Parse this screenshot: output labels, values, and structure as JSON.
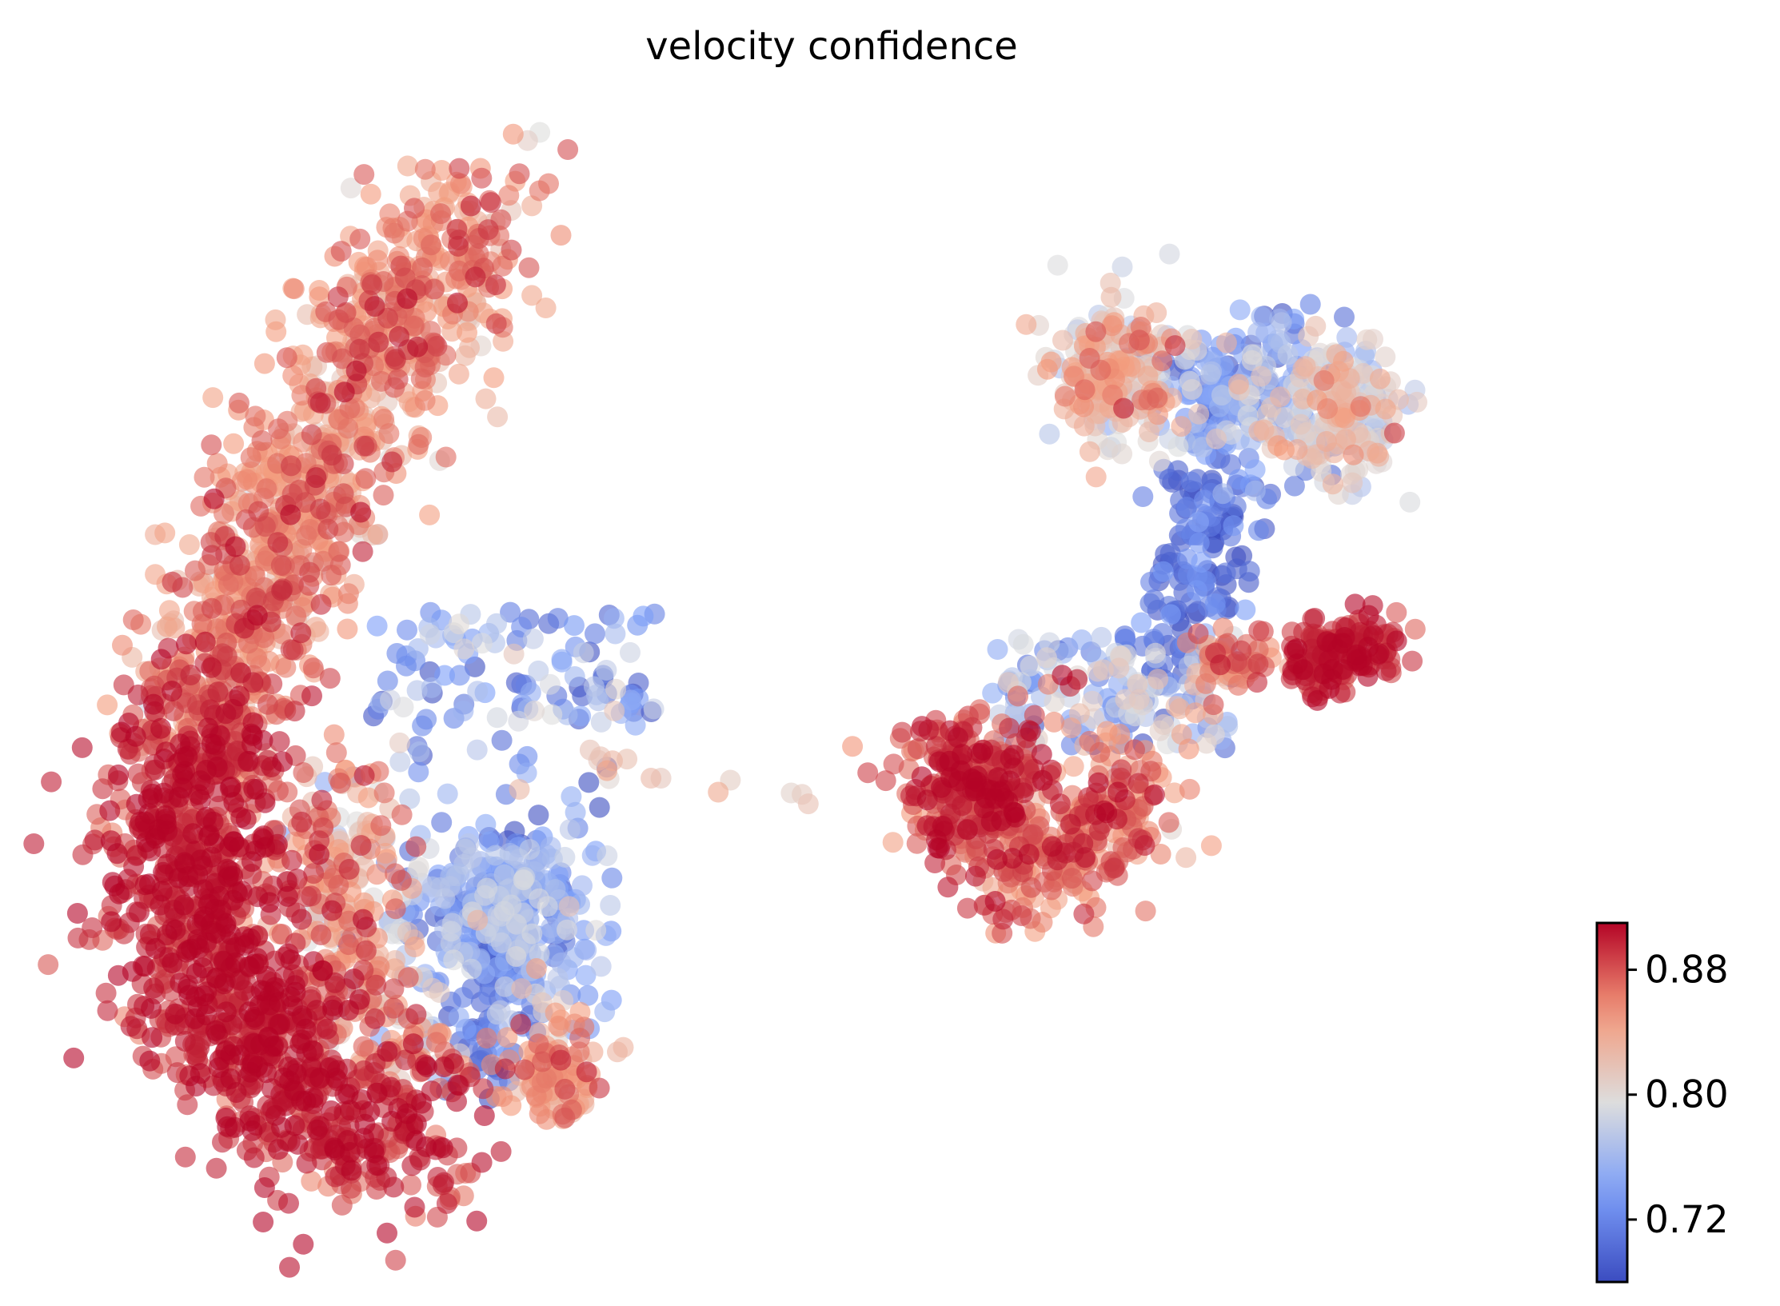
{
  "chart_data": {
    "type": "scatter",
    "title": "velocity confidence",
    "xlabel": "",
    "ylabel": "",
    "axes_visible": false,
    "grid": false,
    "colorbar": {
      "colormap": "coolwarm",
      "min": 0.68,
      "max": 0.91,
      "ticks": [
        0.72,
        0.8,
        0.88
      ],
      "tick_labels": [
        "0.72",
        "0.80",
        "0.88"
      ],
      "placement": "lower-right"
    },
    "marker_alpha": 0.6,
    "xlim": [
      0,
      1
    ],
    "ylim": [
      0,
      1
    ],
    "regions": [
      {
        "name": "left arc upper band",
        "path": [
          [
            0.26,
            0.92
          ],
          [
            0.22,
            0.84
          ],
          [
            0.18,
            0.76
          ],
          [
            0.15,
            0.68
          ],
          [
            0.12,
            0.6
          ],
          [
            0.1,
            0.53
          ],
          [
            0.085,
            0.47
          ]
        ],
        "spread": 0.028,
        "count": 950,
        "value_mean": 0.852,
        "value_sd": 0.025
      },
      {
        "name": "left arc lower band",
        "path": [
          [
            0.085,
            0.47
          ],
          [
            0.07,
            0.37
          ],
          [
            0.08,
            0.27
          ],
          [
            0.12,
            0.18
          ],
          [
            0.18,
            0.12
          ],
          [
            0.23,
            0.11
          ]
        ],
        "spread": 0.032,
        "count": 1100,
        "value_mean": 0.895,
        "value_sd": 0.018
      },
      {
        "name": "left arc inner edge",
        "path": [
          [
            0.17,
            0.42
          ],
          [
            0.17,
            0.32
          ],
          [
            0.19,
            0.22
          ],
          [
            0.24,
            0.16
          ]
        ],
        "spread": 0.02,
        "count": 250,
        "value_mean": 0.845,
        "value_sd": 0.03
      },
      {
        "name": "central blue blob",
        "center": [
          0.28,
          0.305
        ],
        "sd": [
          0.028,
          0.034
        ],
        "count": 330,
        "value_mean": 0.74,
        "value_sd": 0.03
      },
      {
        "name": "central blob lower tail",
        "path": [
          [
            0.28,
            0.26
          ],
          [
            0.27,
            0.2
          ],
          [
            0.26,
            0.16
          ]
        ],
        "spread": 0.012,
        "count": 45,
        "value_mean": 0.7,
        "value_sd": 0.02
      },
      {
        "name": "small orange lobe",
        "center": [
          0.315,
          0.165
        ],
        "sd": [
          0.017,
          0.023
        ],
        "count": 90,
        "value_mean": 0.855,
        "value_sd": 0.02
      },
      {
        "name": "diffuse blue scatter",
        "box": [
          [
            0.19,
            0.47
          ],
          [
            0.38,
            0.57
          ]
        ],
        "count": 110,
        "value_mean": 0.74,
        "value_sd": 0.045
      },
      {
        "name": "diffuse blue scatter inner",
        "box": [
          [
            0.16,
            0.19
          ],
          [
            0.35,
            0.46
          ]
        ],
        "count": 90,
        "value_mean": 0.75,
        "value_sd": 0.045
      },
      {
        "name": "bridge",
        "path": [
          [
            0.33,
            0.45
          ],
          [
            0.38,
            0.43
          ],
          [
            0.42,
            0.42
          ],
          [
            0.47,
            0.41
          ],
          [
            0.52,
            0.41
          ]
        ],
        "spread": 0.005,
        "count": 14,
        "value_mean": 0.82,
        "value_sd": 0.02
      },
      {
        "name": "right lower red blob",
        "center": [
          0.585,
          0.42
        ],
        "sd": [
          0.025,
          0.03
        ],
        "count": 280,
        "value_mean": 0.885,
        "value_sd": 0.02
      },
      {
        "name": "right lower cluster",
        "path": [
          [
            0.6,
            0.37
          ],
          [
            0.64,
            0.34
          ],
          [
            0.67,
            0.38
          ],
          [
            0.7,
            0.42
          ]
        ],
        "spread": 0.022,
        "count": 260,
        "value_mean": 0.865,
        "value_sd": 0.025
      },
      {
        "name": "right middle mixed",
        "box": [
          [
            0.6,
            0.45
          ],
          [
            0.76,
            0.55
          ]
        ],
        "count": 170,
        "value_mean": 0.77,
        "value_sd": 0.05
      },
      {
        "name": "right top left lobe",
        "center": [
          0.68,
          0.78
        ],
        "sd": [
          0.022,
          0.03
        ],
        "count": 210,
        "value_mean": 0.825,
        "value_sd": 0.03
      },
      {
        "name": "right top center",
        "center": [
          0.765,
          0.76
        ],
        "sd": [
          0.035,
          0.035
        ],
        "count": 230,
        "value_mean": 0.745,
        "value_sd": 0.035
      },
      {
        "name": "right top right lobe",
        "center": [
          0.83,
          0.745
        ],
        "sd": [
          0.02,
          0.03
        ],
        "count": 190,
        "value_mean": 0.805,
        "value_sd": 0.03
      },
      {
        "name": "right dark blue stem",
        "path": [
          [
            0.75,
            0.7
          ],
          [
            0.74,
            0.64
          ],
          [
            0.73,
            0.58
          ],
          [
            0.72,
            0.53
          ]
        ],
        "spread": 0.015,
        "count": 140,
        "value_mean": 0.7,
        "value_sd": 0.02
      },
      {
        "name": "right stem orange patch",
        "center": [
          0.755,
          0.525
        ],
        "sd": [
          0.012,
          0.015
        ],
        "count": 55,
        "value_mean": 0.86,
        "value_sd": 0.02
      },
      {
        "name": "right arm red tip",
        "path": [
          [
            0.8,
            0.52
          ],
          [
            0.83,
            0.535
          ],
          [
            0.86,
            0.545
          ]
        ],
        "spread": 0.012,
        "count": 160,
        "value_mean": 0.895,
        "value_sd": 0.015
      }
    ]
  }
}
